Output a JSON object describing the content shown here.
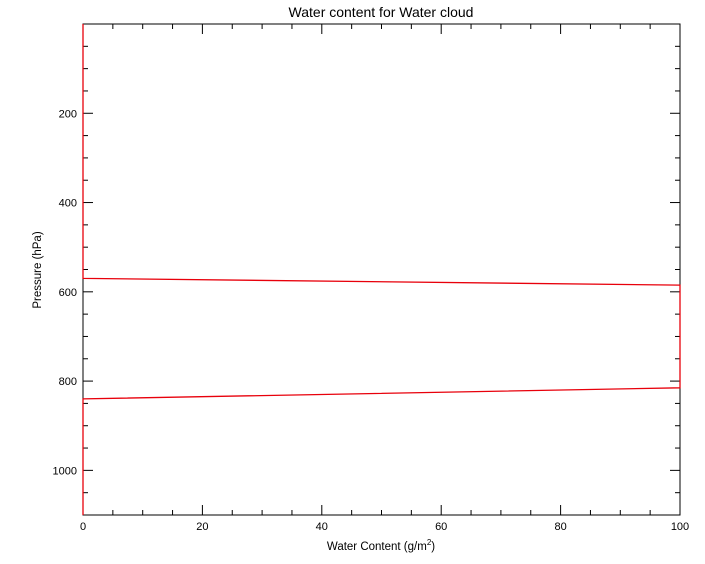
{
  "chart_data": {
    "type": "line",
    "title": "Water content for Water cloud",
    "xlabel": "Water Content (g/m",
    "xlabel_sup": "2",
    "xlabel_end": ")",
    "ylabel": "Pressure (hPa)",
    "xlim": [
      0,
      100
    ],
    "ylim": [
      1100,
      0
    ],
    "y_inverted": true,
    "grid": false,
    "x_ticks": [
      0,
      20,
      40,
      60,
      80,
      100
    ],
    "x_tick_labels": [
      "0",
      "20",
      "40",
      "60",
      "80",
      "100"
    ],
    "y_ticks": [
      200,
      400,
      600,
      800,
      1000
    ],
    "y_tick_labels": [
      "200",
      "400",
      "600",
      "800",
      "1000"
    ],
    "line_color": "#e8000b",
    "series": [
      {
        "x": [
          0,
          0,
          100,
          100,
          0,
          0
        ],
        "y": [
          0,
          570,
          585,
          815,
          840,
          1100
        ]
      }
    ]
  }
}
